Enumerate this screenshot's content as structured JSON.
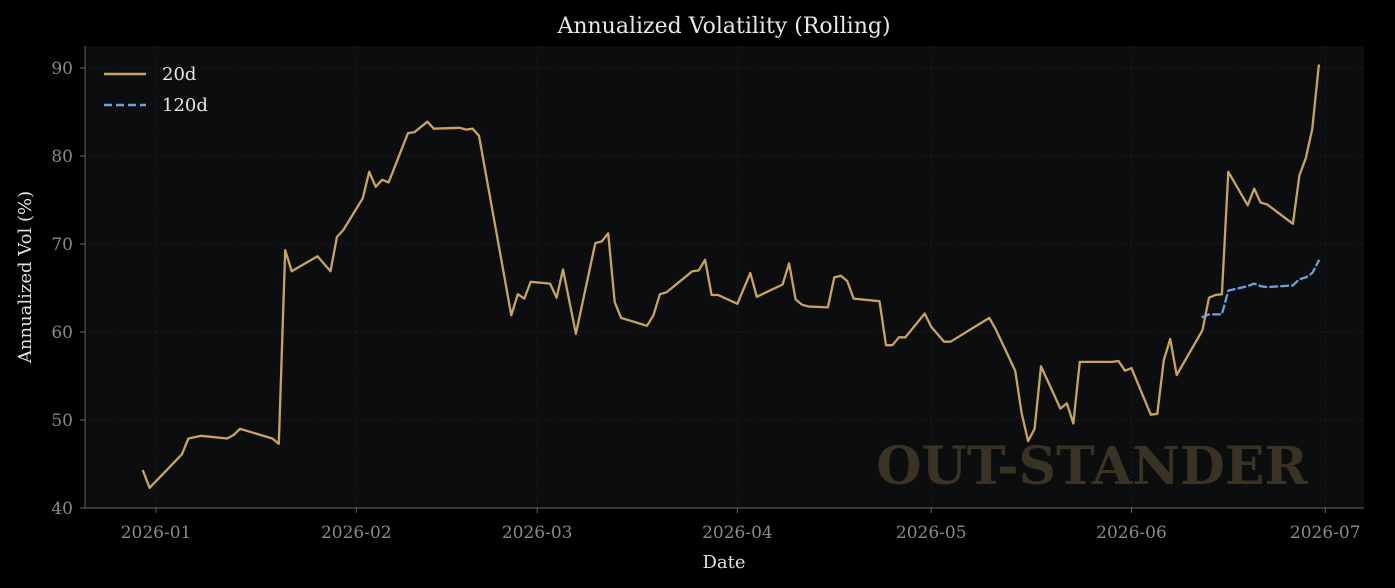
{
  "chart_data": {
    "type": "line",
    "title": "Annualized Volatility (Rolling)",
    "xlabel": "Date",
    "ylabel": "Annualized Vol (%)",
    "xlim": [
      "2025-12-21",
      "2026-07-07"
    ],
    "ylim": [
      40,
      92.5
    ],
    "x_ticks": [
      "2026-01",
      "2026-02",
      "2026-03",
      "2026-04",
      "2026-05",
      "2026-06",
      "2026-07"
    ],
    "y_ticks": [
      40,
      50,
      60,
      70,
      80,
      90
    ],
    "grid": true,
    "legend_position": "top-left",
    "watermark": "OUT-STANDER",
    "colors": {
      "background": "#000000",
      "plot_background": "#0b0d0f",
      "series_20d": "#c9a45c",
      "series_120d": "#6f9fd8",
      "watermark": "#3a3222"
    },
    "series": [
      {
        "name": "20d",
        "style": "solid",
        "points": [
          [
            "2025-12-30",
            44.2
          ],
          [
            "2025-12-31",
            42.3
          ],
          [
            "2026-01-05",
            46.1
          ],
          [
            "2026-01-06",
            47.9
          ],
          [
            "2026-01-08",
            48.2
          ],
          [
            "2026-01-12",
            47.9
          ],
          [
            "2026-01-13",
            48.3
          ],
          [
            "2026-01-14",
            49.0
          ],
          [
            "2026-01-19",
            47.9
          ],
          [
            "2026-01-20",
            47.3
          ],
          [
            "2026-01-21",
            69.3
          ],
          [
            "2026-01-22",
            66.9
          ],
          [
            "2026-01-26",
            68.6
          ],
          [
            "2026-01-28",
            66.9
          ],
          [
            "2026-01-29",
            70.8
          ],
          [
            "2026-01-30",
            71.6
          ],
          [
            "2026-02-02",
            75.2
          ],
          [
            "2026-02-03",
            78.2
          ],
          [
            "2026-02-04",
            76.5
          ],
          [
            "2026-02-05",
            77.3
          ],
          [
            "2026-02-06",
            77.0
          ],
          [
            "2026-02-09",
            82.6
          ],
          [
            "2026-02-10",
            82.7
          ],
          [
            "2026-02-12",
            83.9
          ],
          [
            "2026-02-13",
            83.1
          ],
          [
            "2026-02-17",
            83.2
          ],
          [
            "2026-02-18",
            83.0
          ],
          [
            "2026-02-19",
            83.1
          ],
          [
            "2026-02-20",
            82.3
          ],
          [
            "2026-02-25",
            61.9
          ],
          [
            "2026-02-26",
            64.3
          ],
          [
            "2026-02-27",
            63.8
          ],
          [
            "2026-02-28",
            65.7
          ],
          [
            "2026-03-03",
            65.5
          ],
          [
            "2026-03-04",
            63.9
          ],
          [
            "2026-03-05",
            67.1
          ],
          [
            "2026-03-07",
            59.8
          ],
          [
            "2026-03-10",
            70.1
          ],
          [
            "2026-03-11",
            70.3
          ],
          [
            "2026-03-12",
            71.2
          ],
          [
            "2026-03-13",
            63.4
          ],
          [
            "2026-03-14",
            61.6
          ],
          [
            "2026-03-18",
            60.7
          ],
          [
            "2026-03-19",
            61.9
          ],
          [
            "2026-03-20",
            64.3
          ],
          [
            "2026-03-21",
            64.5
          ],
          [
            "2026-03-25",
            66.9
          ],
          [
            "2026-03-26",
            67.0
          ],
          [
            "2026-03-27",
            68.2
          ],
          [
            "2026-03-28",
            64.2
          ],
          [
            "2026-03-29",
            64.2
          ],
          [
            "2026-04-01",
            63.2
          ],
          [
            "2026-04-03",
            66.7
          ],
          [
            "2026-04-04",
            64.0
          ],
          [
            "2026-04-08",
            65.4
          ],
          [
            "2026-04-09",
            67.8
          ],
          [
            "2026-04-10",
            63.7
          ],
          [
            "2026-04-11",
            63.1
          ],
          [
            "2026-04-12",
            62.9
          ],
          [
            "2026-04-15",
            62.8
          ],
          [
            "2026-04-16",
            66.2
          ],
          [
            "2026-04-17",
            66.4
          ],
          [
            "2026-04-18",
            65.8
          ],
          [
            "2026-04-19",
            63.8
          ],
          [
            "2026-04-23",
            63.5
          ],
          [
            "2026-04-24",
            58.5
          ],
          [
            "2026-04-25",
            58.5
          ],
          [
            "2026-04-26",
            59.4
          ],
          [
            "2026-04-27",
            59.4
          ],
          [
            "2026-04-30",
            62.1
          ],
          [
            "2026-05-01",
            60.6
          ],
          [
            "2026-05-03",
            58.9
          ],
          [
            "2026-05-04",
            58.9
          ],
          [
            "2026-05-10",
            61.6
          ],
          [
            "2026-05-11",
            60.3
          ],
          [
            "2026-05-14",
            55.6
          ],
          [
            "2026-05-15",
            50.8
          ],
          [
            "2026-05-16",
            47.6
          ],
          [
            "2026-05-17",
            49.0
          ],
          [
            "2026-05-18",
            56.1
          ],
          [
            "2026-05-21",
            51.3
          ],
          [
            "2026-05-22",
            51.9
          ],
          [
            "2026-05-23",
            49.6
          ],
          [
            "2026-05-24",
            56.6
          ],
          [
            "2026-05-29",
            56.6
          ],
          [
            "2026-05-30",
            56.7
          ],
          [
            "2026-05-31",
            55.6
          ],
          [
            "2026-06-01",
            55.9
          ],
          [
            "2026-06-04",
            50.6
          ],
          [
            "2026-06-05",
            50.7
          ],
          [
            "2026-06-06",
            56.8
          ],
          [
            "2026-06-07",
            59.2
          ],
          [
            "2026-06-08",
            55.1
          ],
          [
            "2026-06-12",
            60.2
          ],
          [
            "2026-06-13",
            63.9
          ],
          [
            "2026-06-14",
            64.2
          ],
          [
            "2026-06-15",
            64.3
          ],
          [
            "2026-06-16",
            78.2
          ],
          [
            "2026-06-19",
            74.4
          ],
          [
            "2026-06-20",
            76.3
          ],
          [
            "2026-06-21",
            74.7
          ],
          [
            "2026-06-22",
            74.5
          ],
          [
            "2026-06-26",
            72.3
          ],
          [
            "2026-06-27",
            77.8
          ],
          [
            "2026-06-28",
            79.8
          ],
          [
            "2026-06-29",
            83.1
          ],
          [
            "2026-06-30",
            90.3
          ]
        ]
      },
      {
        "name": "120d",
        "style": "dashed",
        "points": [
          [
            "2026-06-12",
            61.7
          ],
          [
            "2026-06-13",
            62.0
          ],
          [
            "2026-06-15",
            62.0
          ],
          [
            "2026-06-16",
            64.7
          ],
          [
            "2026-06-19",
            65.2
          ],
          [
            "2026-06-20",
            65.5
          ],
          [
            "2026-06-21",
            65.2
          ],
          [
            "2026-06-22",
            65.1
          ],
          [
            "2026-06-26",
            65.3
          ],
          [
            "2026-06-27",
            66.0
          ],
          [
            "2026-06-28",
            66.2
          ],
          [
            "2026-06-29",
            66.7
          ],
          [
            "2026-06-30",
            68.1
          ]
        ]
      }
    ]
  }
}
